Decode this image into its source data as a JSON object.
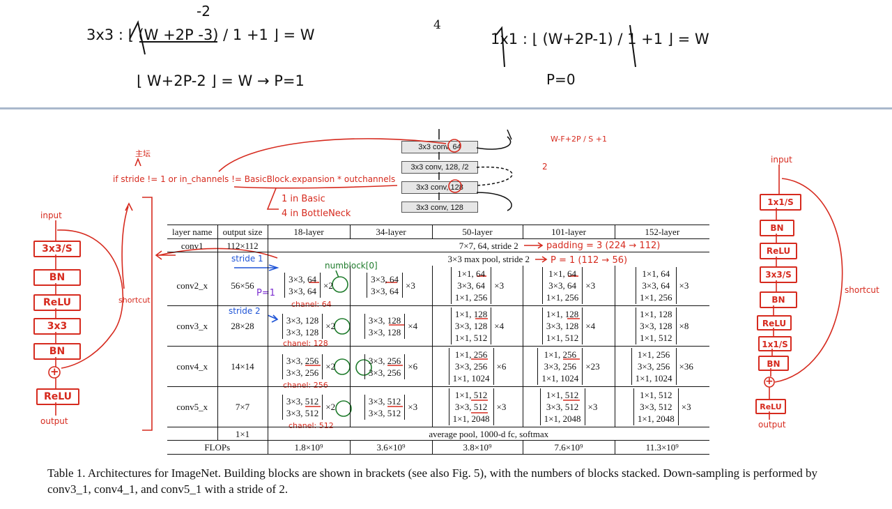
{
  "page_number": "4",
  "notes_top": {
    "eq_3x3": "3x3 : ⌊ (W +2P -3) / 1 +1 ⌋ = W",
    "eq_3x3_fix": "-2",
    "eq_3x3_b": "⌊ W+2P-2 ⌋ = W → P=1",
    "eq_1x1": "1x1 : ⌊ (W+2P-1) / 1 +1 ⌋ = W",
    "eq_1x1_b": "P=0"
  },
  "snippet": {
    "rows": [
      "3x3 conv, 64",
      "3x3 conv, 128, /2",
      "3x3 conv, 128",
      "3x3 conv, 128"
    ]
  },
  "annotations": {
    "korean_note": "主坛",
    "if_condition": "if stride != 1 or in_channels != BasicBlock.expansion * outchannels",
    "expansion_basic": "1 in Basic",
    "expansion_bottleneck": "4 in BottleNeck",
    "formula_top": "W-F+2P / S +1",
    "formula_two": "2",
    "padding_conv1": "padding = 3 (224 → 112)",
    "p_pool": "P = 1   (112 → 56)",
    "stride1": "stride 1",
    "stride2": "stride 2",
    "p1": "P=1",
    "numblock": "numblock[0]",
    "chanel64": "chanel: 64",
    "chanel128": "chanel: 128",
    "chanel256": "chanel: 256",
    "chanel512": "chanel: 512",
    "times2": "2",
    "shortcut": "shortcut"
  },
  "left_flow": {
    "input": "input",
    "boxes": [
      "3x3/S",
      "BN",
      "ReLU",
      "3x3",
      "BN"
    ],
    "plus": "+",
    "relu_out": "ReLU",
    "output": "output",
    "shortcut": "shortcut"
  },
  "right_flow": {
    "input": "input",
    "boxes": [
      "1x1/S",
      "BN",
      "ReLU",
      "3x3/S",
      "BN",
      "ReLU",
      "1x1/S",
      "BN"
    ],
    "plus": "+",
    "relu_out": "ReLU",
    "output": "output",
    "shortcut": "shortcut"
  },
  "table": {
    "headers": [
      "layer name",
      "output size",
      "18-layer",
      "34-layer",
      "50-layer",
      "101-layer",
      "152-layer"
    ],
    "conv1": {
      "name": "conv1",
      "size": "112×112",
      "desc": "7×7, 64, stride 2"
    },
    "pool": {
      "desc": "3×3 max pool, stride 2"
    },
    "rows": [
      {
        "name": "conv2_x",
        "size": "56×56",
        "b18": [
          "3×3, 64",
          "3×3, 64"
        ],
        "m18": "×2",
        "b34": [
          "3×3, 64",
          "3×3, 64"
        ],
        "m34": "×3",
        "b50": [
          "1×1, 64",
          "3×3, 64",
          "1×1, 256"
        ],
        "m50": "×3",
        "b101": [
          "1×1, 64",
          "3×3, 64",
          "1×1, 256"
        ],
        "m101": "×3",
        "b152": [
          "1×1, 64",
          "3×3, 64",
          "1×1, 256"
        ],
        "m152": "×3"
      },
      {
        "name": "conv3_x",
        "size": "28×28",
        "b18": [
          "3×3, 128",
          "3×3, 128"
        ],
        "m18": "×2",
        "b34": [
          "3×3, 128",
          "3×3, 128"
        ],
        "m34": "×4",
        "b50": [
          "1×1, 128",
          "3×3, 128",
          "1×1, 512"
        ],
        "m50": "×4",
        "b101": [
          "1×1, 128",
          "3×3, 128",
          "1×1, 512"
        ],
        "m101": "×4",
        "b152": [
          "1×1, 128",
          "3×3, 128",
          "1×1, 512"
        ],
        "m152": "×8"
      },
      {
        "name": "conv4_x",
        "size": "14×14",
        "b18": [
          "3×3, 256",
          "3×3, 256"
        ],
        "m18": "×2",
        "b34": [
          "3×3, 256",
          "3×3, 256"
        ],
        "m34": "×6",
        "b50": [
          "1×1, 256",
          "3×3, 256",
          "1×1, 1024"
        ],
        "m50": "×6",
        "b101": [
          "1×1, 256",
          "3×3, 256",
          "1×1, 1024"
        ],
        "m101": "×23",
        "b152": [
          "1×1, 256",
          "3×3, 256",
          "1×1, 1024"
        ],
        "m152": "×36"
      },
      {
        "name": "conv5_x",
        "size": "7×7",
        "b18": [
          "3×3, 512",
          "3×3, 512"
        ],
        "m18": "×2",
        "b34": [
          "3×3, 512",
          "3×3, 512"
        ],
        "m34": "×3",
        "b50": [
          "1×1, 512",
          "3×3, 512",
          "1×1, 2048"
        ],
        "m50": "×3",
        "b101": [
          "1×1, 512",
          "3×3, 512",
          "1×1, 2048"
        ],
        "m101": "×3",
        "b152": [
          "1×1, 512",
          "3×3, 512",
          "1×1, 2048"
        ],
        "m152": "×3"
      }
    ],
    "final": {
      "size": "1×1",
      "desc": "average pool, 1000-d fc, softmax"
    },
    "flops": {
      "label": "FLOPs",
      "values": [
        "1.8×10⁹",
        "3.6×10⁹",
        "3.8×10⁹",
        "7.6×10⁹",
        "11.3×10⁹"
      ]
    }
  },
  "caption": "Table 1. Architectures for ImageNet. Building blocks are shown in brackets (see also Fig. 5), with the numbers of blocks stacked. Down-sampling is performed by conv3_1, conv4_1, and conv5_1 with a stride of 2."
}
